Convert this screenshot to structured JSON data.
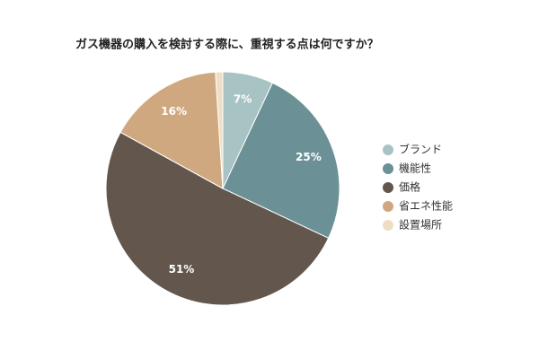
{
  "chart_data": {
    "type": "pie",
    "title": "ガス機器の購入を検討する際に、重視する点は何ですか？",
    "categories": [
      "ブランド",
      "機能性",
      "価格",
      "省エネ性能",
      "設置場所"
    ],
    "values": [
      7,
      25,
      51,
      16,
      1
    ],
    "value_labels": [
      "7%",
      "25%",
      "51%",
      "16%",
      null
    ],
    "colors": [
      "#a8c3c3",
      "#6b9095",
      "#63574d",
      "#d0a880",
      "#eedfc4"
    ],
    "legend": "right"
  }
}
